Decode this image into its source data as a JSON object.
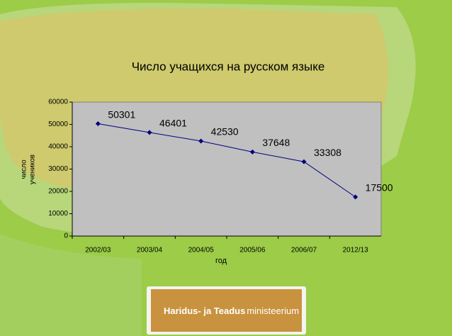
{
  "chart_data": {
    "type": "line",
    "title": "Число учащихся на русском языке",
    "ylabel": [
      "число",
      "учеников"
    ],
    "xlabel": "год",
    "categories": [
      "2002/03",
      "2003/04",
      "2004/05",
      "2005/06",
      "2006/07",
      "2012/13"
    ],
    "series": [
      {
        "name": "Число учащихся",
        "color": "#000080",
        "values": [
          50301,
          46401,
          42530,
          37648,
          33308,
          17500
        ]
      }
    ],
    "ylim": [
      0,
      60000
    ],
    "yticks": [
      0,
      10000,
      20000,
      30000,
      40000,
      50000,
      60000
    ],
    "plot_background": "#c0c0c0"
  },
  "logo": {
    "bold": "Haridus- ja Teadus",
    "light": "ministeerium"
  }
}
